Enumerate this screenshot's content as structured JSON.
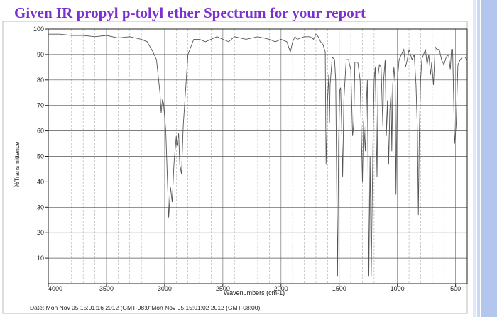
{
  "slide": {
    "title": "Given IR propyl p-tolyl ether Spectrum for your report",
    "footer": "Date: Mon Nov 05 15:01:16 2012 (GMT-08:0\"Mon Nov 05 15:01:02 2012 (GMT-08:00)",
    "title_color": "#7b2fd0"
  },
  "chart_data": {
    "type": "line",
    "xlabel": "Wavenumbers (cm-1)",
    "ylabel": "%Transmittance",
    "xlim": [
      4000,
      400
    ],
    "ylim": [
      0,
      100
    ],
    "x_reversed": true,
    "x_ticks": [
      {
        "value": 4000,
        "label": "4000"
      },
      {
        "value": 3500,
        "label": "3500"
      },
      {
        "value": 3000,
        "label": "3000"
      },
      {
        "value": 2500,
        "label": "2500"
      },
      {
        "value": 2000,
        "label": "2000"
      },
      {
        "value": 1500,
        "label": "1500"
      },
      {
        "value": 1000,
        "label": "1000"
      },
      {
        "value": 500,
        "label": "500"
      }
    ],
    "y_ticks": [
      {
        "value": 100,
        "label": "100"
      },
      {
        "value": 90,
        "label": "90"
      },
      {
        "value": 80,
        "label": "80"
      },
      {
        "value": 70,
        "label": "70"
      },
      {
        "value": 60,
        "label": "60"
      },
      {
        "value": 50,
        "label": "50"
      },
      {
        "value": 40,
        "label": "40"
      },
      {
        "value": 30,
        "label": "30"
      },
      {
        "value": 20,
        "label": "20"
      },
      {
        "value": 10,
        "label": "10"
      }
    ],
    "grid": true,
    "line_color": "#555555",
    "series": [
      {
        "points": [
          [
            4000,
            98
          ],
          [
            3900,
            98
          ],
          [
            3800,
            97.5
          ],
          [
            3700,
            97.5
          ],
          [
            3600,
            97
          ],
          [
            3500,
            97.5
          ],
          [
            3400,
            96.5
          ],
          [
            3300,
            97
          ],
          [
            3200,
            96
          ],
          [
            3150,
            95
          ],
          [
            3100,
            91
          ],
          [
            3070,
            88
          ],
          [
            3040,
            75
          ],
          [
            3030,
            67
          ],
          [
            3020,
            72
          ],
          [
            3010,
            71
          ],
          [
            2990,
            60
          ],
          [
            2965,
            26
          ],
          [
            2950,
            38
          ],
          [
            2935,
            32
          ],
          [
            2920,
            47
          ],
          [
            2900,
            58
          ],
          [
            2895,
            54
          ],
          [
            2880,
            59
          ],
          [
            2870,
            47
          ],
          [
            2855,
            43
          ],
          [
            2840,
            62
          ],
          [
            2800,
            90
          ],
          [
            2750,
            96
          ],
          [
            2700,
            96
          ],
          [
            2650,
            95
          ],
          [
            2600,
            96
          ],
          [
            2550,
            97
          ],
          [
            2500,
            96
          ],
          [
            2450,
            95
          ],
          [
            2400,
            97
          ],
          [
            2300,
            96
          ],
          [
            2200,
            97
          ],
          [
            2100,
            96
          ],
          [
            2050,
            95
          ],
          [
            2000,
            96
          ],
          [
            1950,
            95
          ],
          [
            1920,
            91
          ],
          [
            1900,
            95
          ],
          [
            1880,
            97
          ],
          [
            1860,
            96
          ],
          [
            1800,
            97
          ],
          [
            1750,
            97
          ],
          [
            1720,
            96
          ],
          [
            1700,
            98
          ],
          [
            1680,
            97
          ],
          [
            1660,
            95
          ],
          [
            1640,
            94
          ],
          [
            1620,
            91
          ],
          [
            1613,
            47
          ],
          [
            1605,
            60
          ],
          [
            1600,
            72
          ],
          [
            1590,
            82
          ],
          [
            1584,
            63
          ],
          [
            1578,
            78
          ],
          [
            1560,
            89
          ],
          [
            1540,
            88
          ],
          [
            1530,
            80
          ],
          [
            1514,
            3
          ],
          [
            1505,
            55
          ],
          [
            1495,
            76
          ],
          [
            1488,
            77
          ],
          [
            1480,
            64
          ],
          [
            1470,
            42
          ],
          [
            1460,
            72
          ],
          [
            1450,
            80
          ],
          [
            1440,
            88
          ],
          [
            1420,
            88
          ],
          [
            1400,
            84
          ],
          [
            1385,
            58
          ],
          [
            1375,
            63
          ],
          [
            1365,
            87
          ],
          [
            1340,
            87
          ],
          [
            1320,
            80
          ],
          [
            1300,
            40
          ],
          [
            1290,
            64
          ],
          [
            1275,
            52
          ],
          [
            1265,
            72
          ],
          [
            1258,
            80
          ],
          [
            1245,
            3
          ],
          [
            1235,
            50
          ],
          [
            1225,
            3
          ],
          [
            1210,
            55
          ],
          [
            1200,
            80
          ],
          [
            1190,
            85
          ],
          [
            1175,
            42
          ],
          [
            1165,
            82
          ],
          [
            1155,
            86
          ],
          [
            1140,
            85
          ],
          [
            1125,
            62
          ],
          [
            1118,
            80
          ],
          [
            1105,
            88
          ],
          [
            1095,
            58
          ],
          [
            1085,
            72
          ],
          [
            1075,
            47
          ],
          [
            1065,
            68
          ],
          [
            1055,
            75
          ],
          [
            1048,
            52
          ],
          [
            1040,
            78
          ],
          [
            1030,
            85
          ],
          [
            1018,
            78
          ],
          [
            1012,
            35
          ],
          [
            1000,
            80
          ],
          [
            985,
            88
          ],
          [
            965,
            90
          ],
          [
            945,
            92
          ],
          [
            930,
            85
          ],
          [
            915,
            88
          ],
          [
            900,
            92
          ],
          [
            875,
            88
          ],
          [
            855,
            90
          ],
          [
            840,
            78
          ],
          [
            828,
            60
          ],
          [
            820,
            27
          ],
          [
            812,
            58
          ],
          [
            800,
            80
          ],
          [
            790,
            88
          ],
          [
            775,
            90
          ],
          [
            758,
            92
          ],
          [
            745,
            86
          ],
          [
            730,
            90
          ],
          [
            715,
            82
          ],
          [
            705,
            87
          ],
          [
            690,
            78
          ],
          [
            675,
            93
          ],
          [
            660,
            92
          ],
          [
            640,
            92
          ],
          [
            620,
            88
          ],
          [
            600,
            86
          ],
          [
            580,
            89
          ],
          [
            560,
            90
          ],
          [
            545,
            84
          ],
          [
            535,
            92
          ],
          [
            525,
            92
          ],
          [
            508,
            55
          ],
          [
            495,
            62
          ],
          [
            480,
            86
          ],
          [
            460,
            88
          ],
          [
            440,
            89
          ],
          [
            420,
            89
          ],
          [
            400,
            88
          ]
        ]
      }
    ]
  }
}
